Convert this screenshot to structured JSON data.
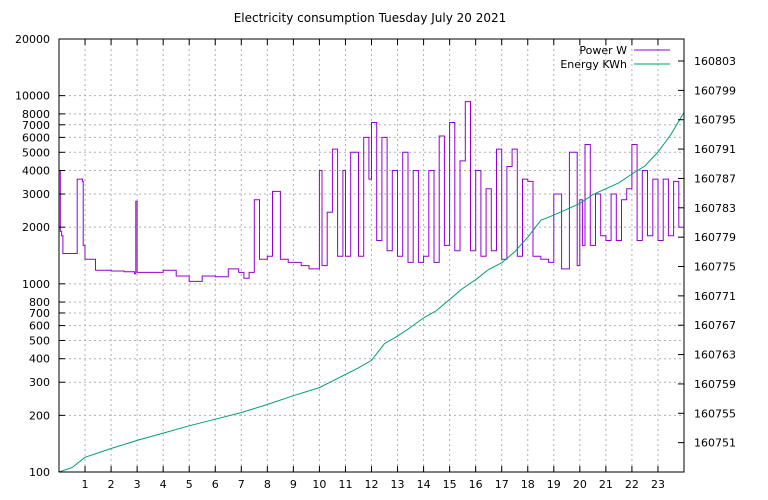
{
  "chart_data": {
    "type": "line",
    "title": "Electricity consumption Tuesday July 20 2021",
    "xlabel": "",
    "ylabel": "",
    "xlim": [
      0,
      24
    ],
    "x_ticks": [
      1,
      2,
      3,
      4,
      5,
      6,
      7,
      8,
      9,
      10,
      11,
      12,
      13,
      14,
      15,
      16,
      17,
      18,
      19,
      20,
      21,
      22,
      23
    ],
    "y_scale": "log",
    "ylim": [
      100,
      20000
    ],
    "y_ticks": [
      100,
      200,
      300,
      400,
      500,
      600,
      700,
      800,
      1000,
      2000,
      3000,
      4000,
      5000,
      6000,
      7000,
      8000,
      10000,
      20000
    ],
    "y2_scale": "linear",
    "y2lim": [
      160747,
      160806
    ],
    "y2_ticks": [
      160751,
      160755,
      160759,
      160763,
      160767,
      160771,
      160775,
      160779,
      160783,
      160787,
      160791,
      160795,
      160799,
      160803
    ],
    "grid": true,
    "legend_position": "top-right",
    "series": [
      {
        "name": "Power W",
        "axis": "left",
        "color": "#9400d3",
        "x": [
          0.0,
          0.05,
          0.1,
          0.15,
          0.2,
          0.6,
          0.7,
          0.75,
          0.9,
          0.93,
          1.0,
          1.4,
          1.5,
          2.0,
          2.5,
          2.9,
          2.95,
          3.0,
          3.5,
          4.0,
          4.5,
          5.0,
          5.5,
          6.0,
          6.5,
          6.9,
          7.1,
          7.3,
          7.5,
          7.7,
          8.0,
          8.2,
          8.5,
          8.8,
          9.0,
          9.3,
          9.6,
          9.9,
          10.0,
          10.1,
          10.3,
          10.5,
          10.7,
          10.9,
          11.0,
          11.2,
          11.5,
          11.7,
          11.9,
          12.0,
          12.2,
          12.4,
          12.6,
          12.8,
          13.0,
          13.2,
          13.4,
          13.6,
          13.8,
          14.0,
          14.2,
          14.4,
          14.6,
          14.8,
          15.0,
          15.2,
          15.4,
          15.6,
          15.8,
          16.0,
          16.2,
          16.4,
          16.6,
          16.8,
          17.0,
          17.2,
          17.4,
          17.6,
          17.8,
          18.0,
          18.2,
          18.5,
          18.8,
          19.0,
          19.3,
          19.6,
          19.9,
          20.0,
          20.1,
          20.2,
          20.4,
          20.6,
          20.8,
          21.0,
          21.2,
          21.4,
          21.6,
          21.8,
          22.0,
          22.2,
          22.4,
          22.6,
          22.8,
          23.0,
          23.2,
          23.4,
          23.6,
          23.8,
          24.0
        ],
        "values": [
          4000,
          1900,
          1800,
          1450,
          1450,
          1450,
          3600,
          3600,
          3500,
          1600,
          1350,
          1180,
          1180,
          1170,
          1160,
          1130,
          2750,
          1150,
          1150,
          1180,
          1100,
          1030,
          1100,
          1090,
          1200,
          1150,
          1070,
          1150,
          2800,
          1350,
          1400,
          3100,
          1350,
          1300,
          1300,
          1250,
          1200,
          1200,
          4000,
          1250,
          2400,
          5200,
          1400,
          4000,
          1400,
          5000,
          1400,
          6000,
          3600,
          7200,
          1700,
          6000,
          1500,
          4000,
          1400,
          5000,
          1300,
          4000,
          1300,
          1400,
          4000,
          1300,
          6100,
          1600,
          7200,
          1500,
          4500,
          9300,
          1500,
          4000,
          1400,
          3200,
          1500,
          5200,
          1350,
          4200,
          5200,
          1400,
          3600,
          3500,
          1400,
          1350,
          1300,
          3000,
          1200,
          5000,
          1250,
          2800,
          1600,
          5500,
          1600,
          3000,
          1800,
          1700,
          3000,
          1700,
          2800,
          3200,
          5500,
          1700,
          4000,
          1800,
          3600,
          1700,
          3600,
          1800,
          3500,
          2000,
          3600
        ]
      },
      {
        "name": "Energy KWh",
        "axis": "right",
        "color": "#009e73",
        "x": [
          0,
          0.5,
          1,
          2,
          3,
          4,
          5,
          6,
          7,
          8,
          9,
          10,
          11,
          11.5,
          12,
          12.5,
          13,
          13.5,
          14,
          14.5,
          15,
          15.5,
          16,
          16.5,
          17,
          17.5,
          18,
          18.5,
          19,
          19.5,
          20,
          20.5,
          21,
          21.5,
          22,
          22.5,
          23,
          23.5,
          24
        ],
        "values": [
          160747.0,
          160747.6,
          160749.0,
          160750.2,
          160751.3,
          160752.3,
          160753.3,
          160754.2,
          160755.1,
          160756.2,
          160757.4,
          160758.5,
          160760.3,
          160761.2,
          160762.2,
          160764.5,
          160765.5,
          160766.7,
          160768.0,
          160769.0,
          160770.5,
          160772.0,
          160773.2,
          160774.6,
          160775.5,
          160777.0,
          160779.0,
          160781.3,
          160782.0,
          160782.8,
          160783.6,
          160784.8,
          160785.6,
          160786.4,
          160787.6,
          160788.7,
          160790.6,
          160793.0,
          160796.0
        ]
      }
    ]
  }
}
